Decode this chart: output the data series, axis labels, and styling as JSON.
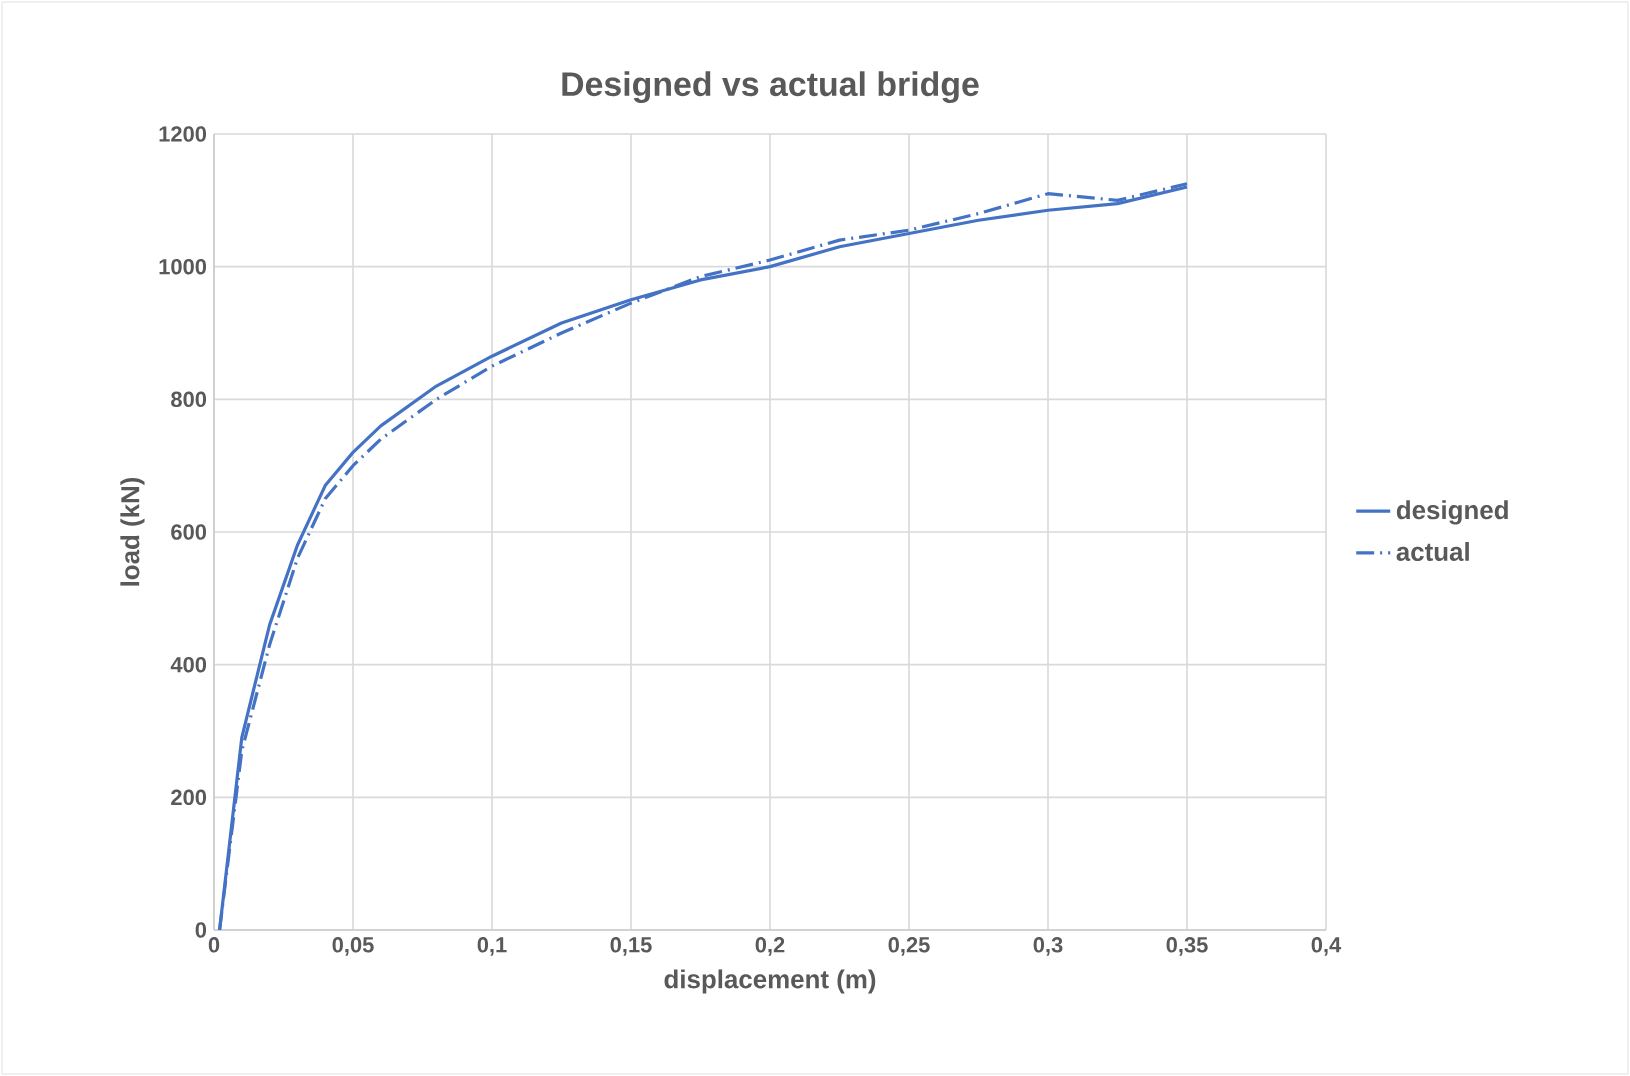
{
  "chart_data": {
    "type": "line",
    "title": "Designed vs actual bridge",
    "xlabel": "displacement (m)",
    "ylabel": "load (kN)",
    "xlim": [
      0,
      0.4
    ],
    "ylim": [
      0,
      1200
    ],
    "xticks": [
      0,
      {
        "value": 0.05,
        "label": "0,05"
      },
      {
        "value": 0.1,
        "label": "0,1"
      },
      {
        "value": 0.15,
        "label": "0,15"
      },
      {
        "value": 0.2,
        "label": "0,2"
      },
      {
        "value": 0.25,
        "label": "0,25"
      },
      {
        "value": 0.3,
        "label": "0,3"
      },
      {
        "value": 0.35,
        "label": "0,35"
      },
      {
        "value": 0.4,
        "label": "0,4"
      }
    ],
    "yticks": [
      0,
      200,
      400,
      600,
      800,
      1000,
      1200
    ],
    "grid": true,
    "legend": "right",
    "marker": "none",
    "series": [
      {
        "name": "designed",
        "color": "#4472c4",
        "line_style": "solid",
        "x": [
          0.002,
          0.01,
          0.02,
          0.03,
          0.04,
          0.05,
          0.06,
          0.08,
          0.1,
          0.125,
          0.15,
          0.175,
          0.2,
          0.225,
          0.25,
          0.275,
          0.3,
          0.325,
          0.35
        ],
        "values": [
          0,
          290,
          460,
          580,
          670,
          720,
          760,
          820,
          865,
          915,
          950,
          980,
          1000,
          1030,
          1050,
          1070,
          1085,
          1095,
          1120
        ]
      },
      {
        "name": "actual",
        "color": "#4472c4",
        "line_style": "dashdot",
        "x": [
          0.002,
          0.01,
          0.02,
          0.03,
          0.04,
          0.05,
          0.06,
          0.08,
          0.1,
          0.125,
          0.15,
          0.175,
          0.2,
          0.225,
          0.25,
          0.275,
          0.3,
          0.325,
          0.35
        ],
        "values": [
          0,
          270,
          430,
          560,
          650,
          700,
          740,
          800,
          850,
          900,
          945,
          985,
          1010,
          1040,
          1055,
          1080,
          1110,
          1100,
          1125
        ]
      }
    ]
  }
}
